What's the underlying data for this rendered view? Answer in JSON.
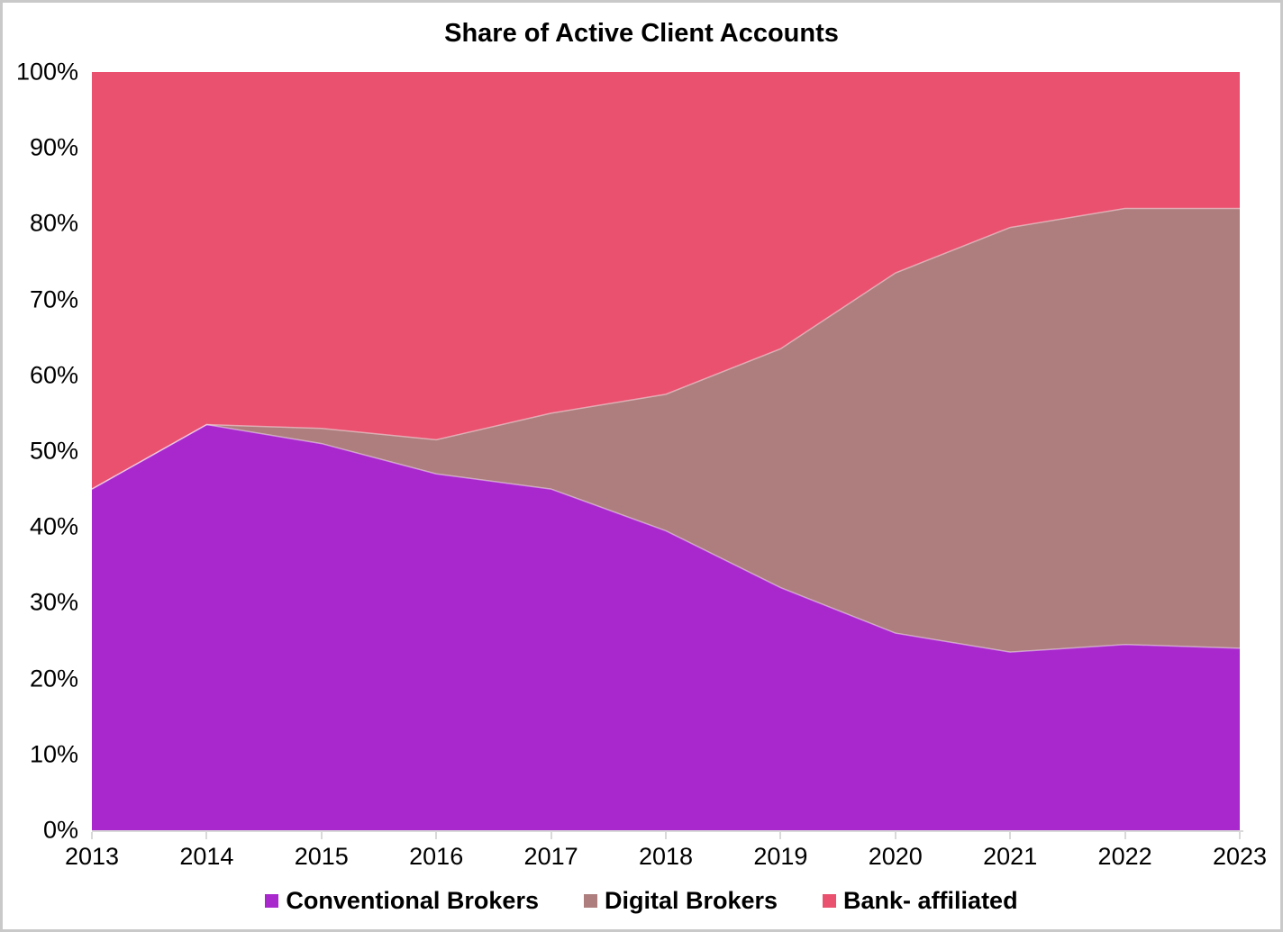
{
  "title": "Share of Active Client Accounts",
  "chart_data": {
    "type": "area",
    "stacked": true,
    "percent_stacked": true,
    "title": "Share of Active Client Accounts",
    "x": [
      2013,
      2014,
      2015,
      2016,
      2017,
      2018,
      2019,
      2020,
      2021,
      2022,
      2023
    ],
    "series": [
      {
        "name": "Conventional Brokers",
        "color": "#A928CE",
        "values": [
          45,
          53.5,
          51,
          47,
          45,
          39.5,
          32,
          26,
          23.5,
          24.5,
          24
        ]
      },
      {
        "name": "Digital Brokers",
        "color": "#AD7E7D",
        "values": [
          0,
          0,
          2,
          4.5,
          10,
          18,
          31.5,
          47.5,
          56,
          57.5,
          58
        ]
      },
      {
        "name": "Bank- affiliated",
        "color": "#E9516F",
        "values": [
          55,
          46.5,
          47,
          48.5,
          45,
          42.5,
          36.5,
          26.5,
          20.5,
          18,
          18
        ]
      }
    ],
    "xlabel": "",
    "ylabel": "",
    "ylim": [
      0,
      100
    ],
    "y_ticks": [
      "0%",
      "10%",
      "20%",
      "30%",
      "40%",
      "50%",
      "60%",
      "70%",
      "80%",
      "90%",
      "100%"
    ],
    "grid": false,
    "legend_position": "bottom"
  },
  "colors": {
    "axis_line": "#D9D9D9",
    "border": "#C9C9C9",
    "background": "#FFFFFF",
    "text": "#000000",
    "series_boundary_highlight": "rgba(255,255,255,0.45)"
  }
}
